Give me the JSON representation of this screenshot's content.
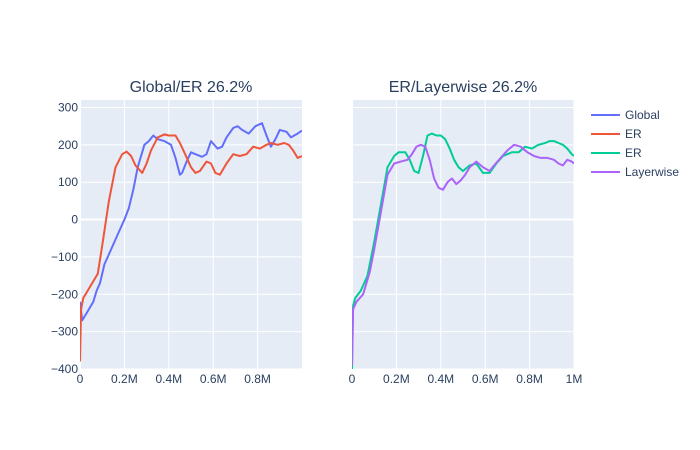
{
  "chart_data": [
    {
      "type": "line",
      "title": "Global/ER 26.2%",
      "xlabel": "",
      "ylabel": "",
      "xlim": [
        0,
        1000000
      ],
      "ylim": [
        -400,
        320
      ],
      "grid": true,
      "x_ticks": [
        {
          "value": 0,
          "label": "0"
        },
        {
          "value": 200000,
          "label": "0.2M"
        },
        {
          "value": 400000,
          "label": "0.4M"
        },
        {
          "value": 600000,
          "label": "0.6M"
        },
        {
          "value": 800000,
          "label": "0.8M"
        }
      ],
      "y_ticks": [
        {
          "value": 300,
          "label": "300"
        },
        {
          "value": 200,
          "label": "200"
        },
        {
          "value": 100,
          "label": "100"
        },
        {
          "value": 0,
          "label": "0"
        },
        {
          "value": -100,
          "label": "−100"
        },
        {
          "value": -200,
          "label": "−200"
        },
        {
          "value": -300,
          "label": "−300"
        },
        {
          "value": -400,
          "label": "−400"
        }
      ],
      "series": [
        {
          "name": "Global",
          "color": "#636efa",
          "x": [
            0,
            10000,
            30000,
            60000,
            75000,
            90000,
            110000,
            140000,
            170000,
            200000,
            220000,
            240000,
            260000,
            290000,
            310000,
            330000,
            350000,
            380000,
            410000,
            430000,
            450000,
            460000,
            480000,
            500000,
            520000,
            550000,
            570000,
            590000,
            620000,
            640000,
            660000,
            690000,
            710000,
            730000,
            760000,
            790000,
            820000,
            840000,
            860000,
            880000,
            900000,
            930000,
            950000,
            980000,
            1000000
          ],
          "y": [
            -220,
            -270,
            -250,
            -220,
            -190,
            -170,
            -120,
            -80,
            -40,
            0,
            30,
            80,
            140,
            200,
            210,
            225,
            215,
            210,
            200,
            165,
            120,
            125,
            155,
            180,
            175,
            168,
            175,
            210,
            190,
            195,
            220,
            245,
            250,
            240,
            230,
            250,
            258,
            225,
            195,
            215,
            240,
            235,
            220,
            230,
            238
          ]
        },
        {
          "name": "ER",
          "color": "#ef553b",
          "x": [
            0,
            5000,
            15000,
            30000,
            60000,
            80000,
            100000,
            130000,
            160000,
            190000,
            210000,
            230000,
            250000,
            280000,
            300000,
            320000,
            350000,
            380000,
            400000,
            430000,
            450000,
            470000,
            500000,
            520000,
            540000,
            570000,
            590000,
            610000,
            630000,
            660000,
            690000,
            720000,
            750000,
            780000,
            810000,
            840000,
            860000,
            890000,
            920000,
            940000,
            960000,
            980000,
            1000000
          ],
          "y": [
            -380,
            -240,
            -210,
            -195,
            -165,
            -145,
            -70,
            50,
            140,
            175,
            182,
            170,
            145,
            125,
            150,
            185,
            220,
            228,
            225,
            225,
            205,
            180,
            140,
            125,
            130,
            155,
            150,
            125,
            120,
            150,
            175,
            170,
            175,
            195,
            190,
            200,
            205,
            200,
            205,
            200,
            185,
            165,
            170
          ]
        }
      ]
    },
    {
      "type": "line",
      "title": "ER/Layerwise 26.2%",
      "xlabel": "",
      "ylabel": "",
      "xlim": [
        0,
        1000000
      ],
      "ylim": [
        -400,
        320
      ],
      "grid": true,
      "x_ticks": [
        {
          "value": 0,
          "label": "0"
        },
        {
          "value": 200000,
          "label": "0.2M"
        },
        {
          "value": 400000,
          "label": "0.4M"
        },
        {
          "value": 600000,
          "label": "0.6M"
        },
        {
          "value": 800000,
          "label": "0.8M"
        },
        {
          "value": 1000000,
          "label": "1M"
        }
      ],
      "series": [
        {
          "name": "ER",
          "color": "#00cc96",
          "x": [
            0,
            5000,
            15000,
            40000,
            70000,
            100000,
            130000,
            160000,
            190000,
            210000,
            240000,
            260000,
            280000,
            300000,
            320000,
            340000,
            360000,
            380000,
            400000,
            420000,
            440000,
            460000,
            480000,
            500000,
            530000,
            560000,
            590000,
            620000,
            650000,
            680000,
            700000,
            720000,
            750000,
            780000,
            810000,
            840000,
            870000,
            890000,
            910000,
            930000,
            950000,
            970000,
            990000,
            1000000
          ],
          "y": [
            -400,
            -230,
            -210,
            -190,
            -150,
            -60,
            40,
            140,
            170,
            180,
            180,
            160,
            130,
            125,
            170,
            225,
            230,
            225,
            225,
            215,
            190,
            160,
            140,
            130,
            145,
            150,
            125,
            125,
            150,
            170,
            175,
            180,
            180,
            195,
            190,
            200,
            205,
            210,
            210,
            205,
            200,
            190,
            175,
            170
          ]
        },
        {
          "name": "Layerwise",
          "color": "#ab63fa",
          "x": [
            0,
            5000,
            20000,
            50000,
            80000,
            100000,
            130000,
            160000,
            190000,
            220000,
            250000,
            270000,
            290000,
            310000,
            330000,
            350000,
            370000,
            390000,
            410000,
            430000,
            450000,
            470000,
            490000,
            510000,
            530000,
            560000,
            590000,
            620000,
            640000,
            670000,
            700000,
            730000,
            760000,
            790000,
            820000,
            850000,
            880000,
            910000,
            930000,
            950000,
            970000,
            990000,
            1000000
          ],
          "y": [
            -390,
            -240,
            -220,
            -200,
            -140,
            -80,
            20,
            120,
            150,
            155,
            160,
            175,
            195,
            200,
            195,
            160,
            110,
            85,
            80,
            100,
            110,
            95,
            105,
            120,
            140,
            155,
            140,
            130,
            145,
            165,
            185,
            200,
            195,
            180,
            170,
            165,
            165,
            160,
            150,
            145,
            160,
            155,
            150
          ]
        }
      ]
    }
  ],
  "legend": {
    "placement": "top-right",
    "items": [
      {
        "label": "Global",
        "color": "#636efa"
      },
      {
        "label": "ER",
        "color": "#ef553b"
      },
      {
        "label": "ER",
        "color": "#00cc96"
      },
      {
        "label": "Layerwise",
        "color": "#ab63fa"
      }
    ]
  },
  "style": {
    "plot_bg": "#e5ecf6",
    "grid_color": "#ffffff",
    "text_color": "#2a3f5f"
  }
}
